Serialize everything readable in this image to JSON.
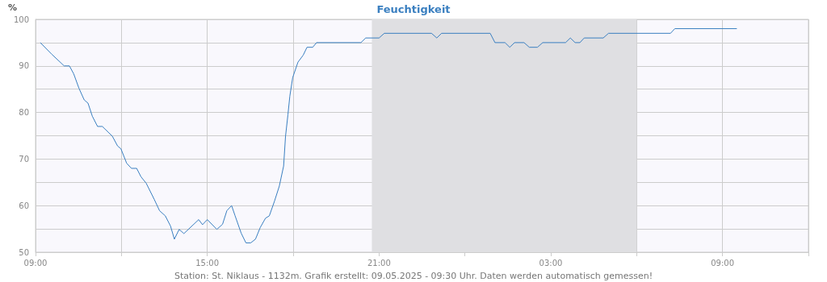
{
  "chart_data": {
    "type": "line",
    "title": "Feuchtigkeit",
    "ylabel": "%",
    "annotations": [
      "Station: St. Niklaus - 1132m. Grafik erstellt: 09.05.2025 - 09:30 Uhr. Daten werden automatisch gemessen!"
    ],
    "xlim": [
      "2025-05-08T09:00",
      "2025-05-09T12:00"
    ],
    "xticks": [
      {
        "value": "2025-05-08T09:00",
        "label": "09:00"
      },
      {
        "value": "2025-05-08T12:00",
        "label": null
      },
      {
        "value": "2025-05-08T15:00",
        "label": "15:00"
      },
      {
        "value": "2025-05-08T18:00",
        "label": null
      },
      {
        "value": "2025-05-08T21:00",
        "label": "21:00"
      },
      {
        "value": "2025-05-09T00:00",
        "label": null
      },
      {
        "value": "2025-05-09T03:00",
        "label": "03:00"
      },
      {
        "value": "2025-05-09T06:00",
        "label": null
      },
      {
        "value": "2025-05-09T09:00",
        "label": "09:00"
      },
      {
        "value": "2025-05-09T12:00",
        "label": null
      }
    ],
    "ylim": [
      50,
      100
    ],
    "yticks": [
      50,
      {
        "value": 55,
        "label": null
      },
      60,
      {
        "value": 65,
        "label": null
      },
      70,
      {
        "value": 75,
        "label": null
      },
      80,
      {
        "value": 85,
        "label": null
      },
      90,
      {
        "value": 95,
        "label": null
      },
      100
    ],
    "grid": true,
    "marker": "none",
    "line_style": "solid",
    "bands": [
      {
        "axis": "x",
        "from": "2025-05-08T20:45",
        "to": "2025-05-09T06:00",
        "color": "#dfdfe2"
      }
    ],
    "series": [
      {
        "color": "#3a7fc0",
        "x": [
          "2025-05-08T09:10",
          "2025-05-08T09:34",
          "2025-05-08T10:00",
          "2025-05-08T10:11",
          "2025-05-08T10:20",
          "2025-05-08T10:31",
          "2025-05-08T10:42",
          "2025-05-08T10:50",
          "2025-05-08T10:59",
          "2025-05-08T11:10",
          "2025-05-08T11:20",
          "2025-05-08T11:41",
          "2025-05-08T11:52",
          "2025-05-08T11:59",
          "2025-05-08T12:11",
          "2025-05-08T12:21",
          "2025-05-08T12:32",
          "2025-05-08T12:41",
          "2025-05-08T12:52",
          "2025-05-08T13:09",
          "2025-05-08T13:20",
          "2025-05-08T13:32",
          "2025-05-08T13:43",
          "2025-05-08T13:51",
          "2025-05-08T14:01",
          "2025-05-08T14:11",
          "2025-05-08T14:42",
          "2025-05-08T14:50",
          "2025-05-08T15:00",
          "2025-05-08T15:20",
          "2025-05-08T15:32",
          "2025-05-08T15:41",
          "2025-05-08T15:51",
          "2025-05-08T15:58",
          "2025-05-08T16:11",
          "2025-05-08T16:21",
          "2025-05-08T16:31",
          "2025-05-08T16:41",
          "2025-05-08T16:51",
          "2025-05-08T17:02",
          "2025-05-08T17:10",
          "2025-05-08T17:21",
          "2025-05-08T17:31",
          "2025-05-08T17:40",
          "2025-05-08T17:44",
          "2025-05-08T17:49",
          "2025-05-08T17:53",
          "2025-05-08T17:59",
          "2025-05-08T18:10",
          "2025-05-08T18:21",
          "2025-05-08T18:29",
          "2025-05-08T18:41",
          "2025-05-08T18:49",
          "2025-05-08T20:22",
          "2025-05-08T20:32",
          "2025-05-08T21:00",
          "2025-05-08T21:11",
          "2025-05-08T22:50",
          "2025-05-08T23:01",
          "2025-05-08T23:11",
          "2025-05-09T00:53",
          "2025-05-09T01:03",
          "2025-05-09T01:24",
          "2025-05-09T01:34",
          "2025-05-09T01:44",
          "2025-05-09T02:04",
          "2025-05-09T02:15",
          "2025-05-09T02:32",
          "2025-05-09T02:43",
          "2025-05-09T03:31",
          "2025-05-09T03:41",
          "2025-05-09T03:51",
          "2025-05-09T04:01",
          "2025-05-09T04:10",
          "2025-05-09T04:50",
          "2025-05-09T05:01",
          "2025-05-09T07:11",
          "2025-05-09T07:20",
          "2025-05-09T09:30"
        ],
        "values": [
          95,
          92.5,
          90,
          90,
          88.3,
          85.2,
          82.7,
          82,
          79.2,
          77,
          77,
          74.9,
          72.8,
          72.2,
          69.1,
          68,
          68,
          66.2,
          64.8,
          61.3,
          58.9,
          57.8,
          55.6,
          52.8,
          54.9,
          54,
          57,
          55.9,
          57,
          54.9,
          56,
          58.9,
          60,
          57.9,
          54.1,
          52,
          52,
          52.8,
          55.3,
          57.3,
          57.8,
          61,
          64.2,
          68.5,
          74.9,
          79.5,
          83.5,
          87.5,
          90.8,
          92.3,
          94,
          94,
          95,
          95,
          96,
          96,
          97,
          97,
          96,
          97,
          97,
          95,
          95,
          94,
          95,
          95,
          94,
          94,
          95,
          95,
          96,
          95,
          95,
          96,
          96,
          97,
          97,
          98,
          98
        ]
      }
    ]
  }
}
